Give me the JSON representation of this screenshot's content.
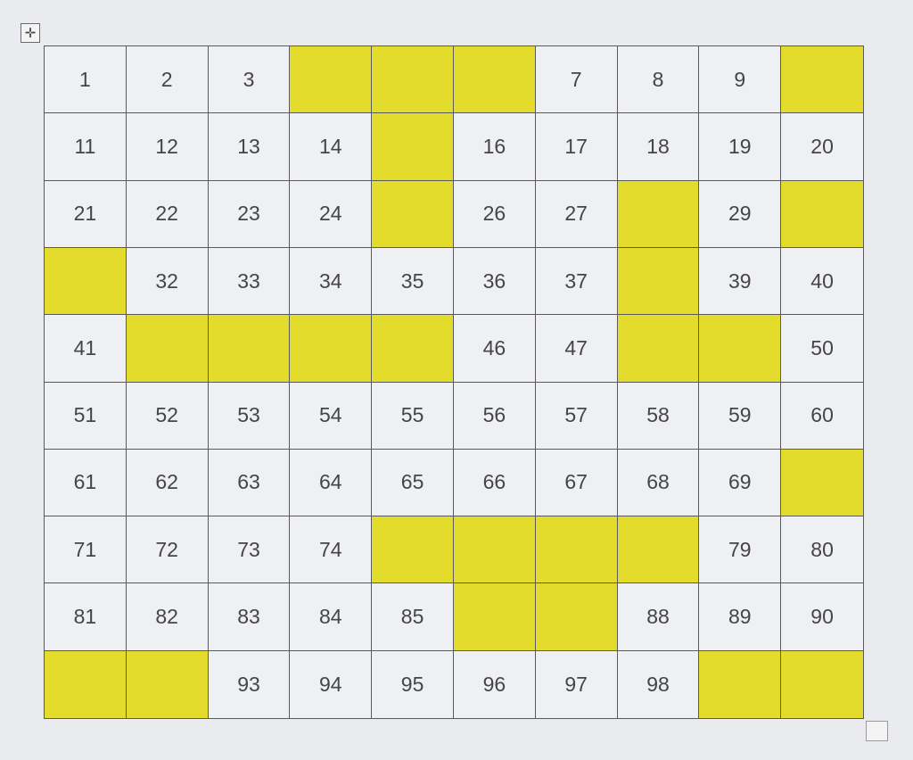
{
  "table": {
    "move_handle_icon": "four-arrows-move-icon",
    "highlight_color": "#e4dc2c",
    "cell_color": "#eef0f3",
    "rows": [
      [
        {
          "v": "1"
        },
        {
          "v": "2"
        },
        {
          "v": "3"
        },
        {
          "v": "",
          "h": true
        },
        {
          "v": "",
          "h": true
        },
        {
          "v": "",
          "h": true
        },
        {
          "v": "7"
        },
        {
          "v": "8"
        },
        {
          "v": "9"
        },
        {
          "v": "",
          "h": true
        }
      ],
      [
        {
          "v": "11"
        },
        {
          "v": "12"
        },
        {
          "v": "13"
        },
        {
          "v": "14"
        },
        {
          "v": "",
          "h": true
        },
        {
          "v": "16"
        },
        {
          "v": "17"
        },
        {
          "v": "18"
        },
        {
          "v": "19"
        },
        {
          "v": "20"
        }
      ],
      [
        {
          "v": "21"
        },
        {
          "v": "22"
        },
        {
          "v": "23"
        },
        {
          "v": "24"
        },
        {
          "v": "",
          "h": true
        },
        {
          "v": "26"
        },
        {
          "v": "27"
        },
        {
          "v": "",
          "h": true
        },
        {
          "v": "29"
        },
        {
          "v": "",
          "h": true
        }
      ],
      [
        {
          "v": "",
          "h": true
        },
        {
          "v": "32"
        },
        {
          "v": "33"
        },
        {
          "v": "34"
        },
        {
          "v": "35"
        },
        {
          "v": "36"
        },
        {
          "v": "37"
        },
        {
          "v": "",
          "h": true
        },
        {
          "v": "39"
        },
        {
          "v": "40"
        }
      ],
      [
        {
          "v": "41"
        },
        {
          "v": "",
          "h": true
        },
        {
          "v": "",
          "h": true
        },
        {
          "v": "",
          "h": true
        },
        {
          "v": "",
          "h": true
        },
        {
          "v": "46"
        },
        {
          "v": "47"
        },
        {
          "v": "",
          "h": true
        },
        {
          "v": "",
          "h": true
        },
        {
          "v": "50"
        }
      ],
      [
        {
          "v": "51"
        },
        {
          "v": "52"
        },
        {
          "v": "53"
        },
        {
          "v": "54"
        },
        {
          "v": "55"
        },
        {
          "v": "56"
        },
        {
          "v": "57"
        },
        {
          "v": "58"
        },
        {
          "v": "59"
        },
        {
          "v": "60"
        }
      ],
      [
        {
          "v": "61"
        },
        {
          "v": "62"
        },
        {
          "v": "63"
        },
        {
          "v": "64"
        },
        {
          "v": "65"
        },
        {
          "v": "66"
        },
        {
          "v": "67"
        },
        {
          "v": "68"
        },
        {
          "v": "69"
        },
        {
          "v": "",
          "h": true
        }
      ],
      [
        {
          "v": "71"
        },
        {
          "v": "72"
        },
        {
          "v": "73"
        },
        {
          "v": "74"
        },
        {
          "v": "",
          "h": true
        },
        {
          "v": "",
          "h": true
        },
        {
          "v": "",
          "h": true
        },
        {
          "v": "",
          "h": true
        },
        {
          "v": "79"
        },
        {
          "v": "80"
        }
      ],
      [
        {
          "v": "81"
        },
        {
          "v": "82"
        },
        {
          "v": "83"
        },
        {
          "v": "84"
        },
        {
          "v": "85"
        },
        {
          "v": "",
          "h": true
        },
        {
          "v": "",
          "h": true
        },
        {
          "v": "88"
        },
        {
          "v": "89"
        },
        {
          "v": "90"
        }
      ],
      [
        {
          "v": "",
          "h": true
        },
        {
          "v": "",
          "h": true
        },
        {
          "v": "93"
        },
        {
          "v": "94"
        },
        {
          "v": "95"
        },
        {
          "v": "96"
        },
        {
          "v": "97"
        },
        {
          "v": "98"
        },
        {
          "v": "",
          "h": true
        },
        {
          "v": "",
          "h": true
        }
      ]
    ]
  }
}
